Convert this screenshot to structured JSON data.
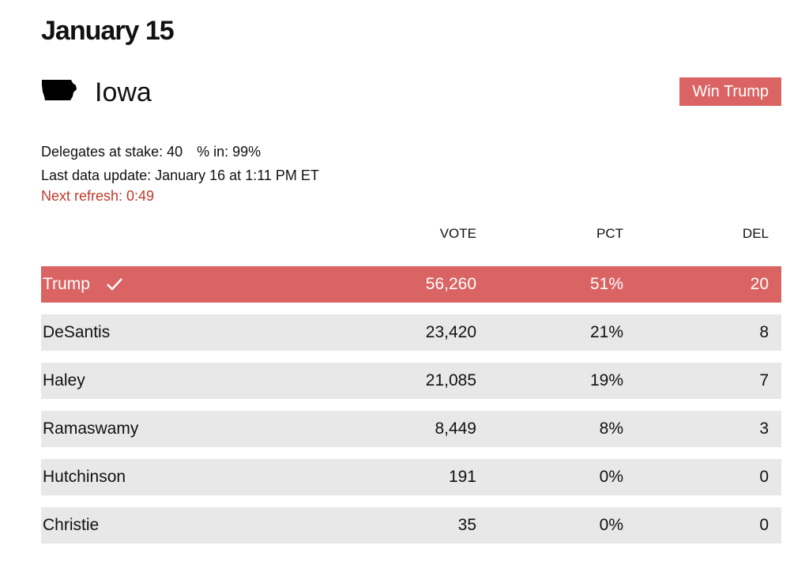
{
  "header": {
    "date": "January 15"
  },
  "state": {
    "name": "Iowa",
    "icon": "iowa-state-icon",
    "winner_badge": "Win Trump"
  },
  "meta": {
    "delegates_label": "Delegates at stake: 40",
    "pct_in_label": "% in: 99%",
    "last_update": "Last data update: January 16 at 1:11 PM ET",
    "next_refresh": "Next refresh: 0:49"
  },
  "colors": {
    "winner": "#d96463",
    "row_bg": "#e8e8e8",
    "refresh_text": "#c0392b"
  },
  "table": {
    "columns": {
      "vote": "VOTE",
      "pct": "PCT",
      "del": "DEL"
    },
    "rows": [
      {
        "name": "Trump",
        "vote": "56,260",
        "pct": "51%",
        "del": "20",
        "winner": true
      },
      {
        "name": "DeSantis",
        "vote": "23,420",
        "pct": "21%",
        "del": "8"
      },
      {
        "name": "Haley",
        "vote": "21,085",
        "pct": "19%",
        "del": "7"
      },
      {
        "name": "Ramaswamy",
        "vote": "8,449",
        "pct": "8%",
        "del": "3"
      },
      {
        "name": "Hutchinson",
        "vote": "191",
        "pct": "0%",
        "del": "0"
      },
      {
        "name": "Christie",
        "vote": "35",
        "pct": "0%",
        "del": "0"
      }
    ]
  }
}
